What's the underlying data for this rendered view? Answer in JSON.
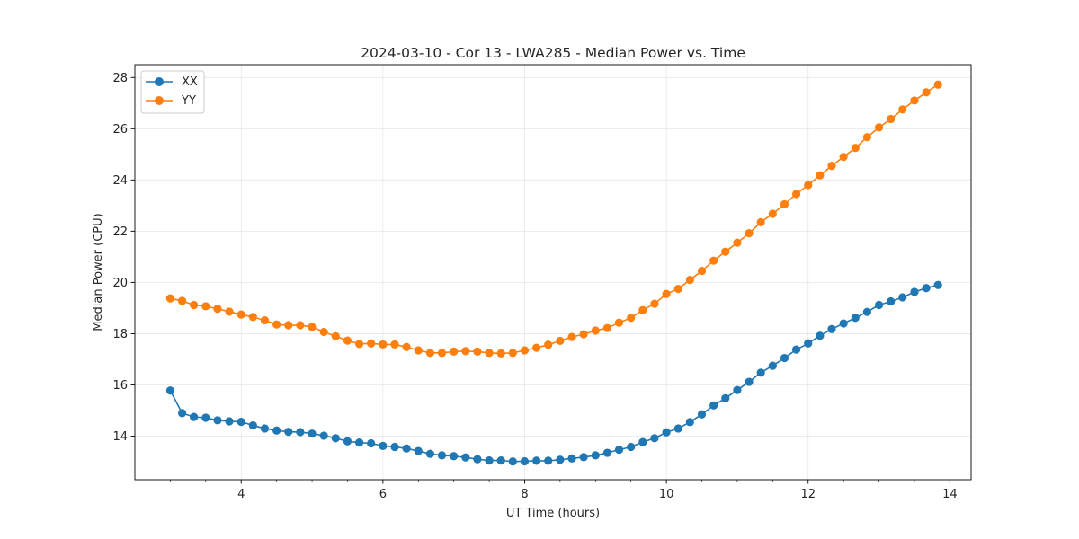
{
  "chart_data": {
    "type": "line",
    "title": "2024-03-10 - Cor 13 - LWA285 - Median Power vs. Time",
    "xlabel": "UT Time (hours)",
    "ylabel": "Median Power (CPU)",
    "xlim": [
      2.5,
      14.3
    ],
    "ylim": [
      12.3,
      28.5
    ],
    "xticks": [
      4,
      6,
      8,
      10,
      12,
      14
    ],
    "yticks": [
      14,
      16,
      18,
      20,
      22,
      24,
      26,
      28
    ],
    "xtick_labels": [
      "4",
      "6",
      "8",
      "10",
      "12",
      "14"
    ],
    "ytick_labels": [
      "14",
      "16",
      "18",
      "20",
      "22",
      "24",
      "26",
      "28"
    ],
    "grid": true,
    "legend": "top-left",
    "x": [
      3.0,
      3.167,
      3.333,
      3.5,
      3.667,
      3.833,
      4.0,
      4.167,
      4.333,
      4.5,
      4.667,
      4.833,
      5.0,
      5.167,
      5.333,
      5.5,
      5.667,
      5.833,
      6.0,
      6.167,
      6.333,
      6.5,
      6.667,
      6.833,
      7.0,
      7.167,
      7.333,
      7.5,
      7.667,
      7.833,
      8.0,
      8.167,
      8.333,
      8.5,
      8.667,
      8.833,
      9.0,
      9.167,
      9.333,
      9.5,
      9.667,
      9.833,
      10.0,
      10.167,
      10.333,
      10.5,
      10.667,
      10.833,
      11.0,
      11.167,
      11.333,
      11.5,
      11.667,
      11.833,
      12.0,
      12.167,
      12.333,
      12.5,
      12.667,
      12.833,
      13.0,
      13.167,
      13.333,
      13.5,
      13.667,
      13.833
    ],
    "series": [
      {
        "name": "XX",
        "color": "#1f77b4",
        "values": [
          15.78,
          14.9,
          14.75,
          14.72,
          14.62,
          14.58,
          14.56,
          14.42,
          14.3,
          14.22,
          14.17,
          14.16,
          14.1,
          14.02,
          13.92,
          13.8,
          13.75,
          13.72,
          13.62,
          13.58,
          13.52,
          13.42,
          13.31,
          13.25,
          13.22,
          13.17,
          13.1,
          13.05,
          13.05,
          13.01,
          13.02,
          13.04,
          13.04,
          13.08,
          13.13,
          13.18,
          13.25,
          13.35,
          13.47,
          13.58,
          13.77,
          13.92,
          14.15,
          14.3,
          14.55,
          14.85,
          15.2,
          15.48,
          15.8,
          16.12,
          16.48,
          16.75,
          17.05,
          17.38,
          17.62,
          17.92,
          18.18,
          18.4,
          18.62,
          18.85,
          19.12,
          19.26,
          19.42,
          19.63,
          19.78,
          19.9
        ]
      },
      {
        "name": "YY",
        "color": "#ff7f0e",
        "values": [
          19.38,
          19.28,
          19.12,
          19.07,
          18.97,
          18.86,
          18.75,
          18.65,
          18.52,
          18.36,
          18.33,
          18.33,
          18.26,
          18.07,
          17.9,
          17.73,
          17.6,
          17.62,
          17.58,
          17.58,
          17.48,
          17.35,
          17.25,
          17.25,
          17.3,
          17.32,
          17.3,
          17.25,
          17.23,
          17.25,
          17.35,
          17.45,
          17.57,
          17.72,
          17.87,
          17.98,
          18.12,
          18.22,
          18.43,
          18.62,
          18.92,
          19.17,
          19.55,
          19.75,
          20.1,
          20.45,
          20.85,
          21.2,
          21.55,
          21.92,
          22.35,
          22.68,
          23.05,
          23.45,
          23.8,
          24.18,
          24.55,
          24.9,
          25.25,
          25.67,
          26.05,
          26.38,
          26.75,
          27.1,
          27.42,
          27.72
        ]
      }
    ]
  }
}
